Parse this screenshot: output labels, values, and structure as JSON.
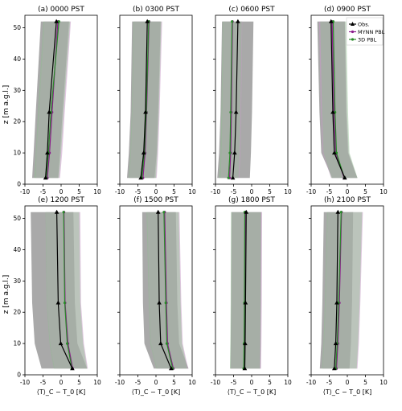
{
  "figure": {
    "ylabel": "z [m a.g.l.]",
    "xlabel": "⟨T⟩_C − T_0 [K]"
  },
  "chart_data": {
    "type": "line",
    "x_ticks": [
      -10,
      -5,
      0,
      5,
      10
    ],
    "y_ticks": [
      0,
      10,
      20,
      30,
      40,
      50
    ],
    "xlim": [
      -10,
      10
    ],
    "ylim": [
      0,
      54
    ],
    "heights": [
      2,
      10,
      23,
      52
    ],
    "legend": {
      "placement": "top-right of panel (d)",
      "entries": [
        {
          "label": "Obs.",
          "color": "#000000",
          "marker": "triangle"
        },
        {
          "label": "MYNN PBL",
          "color": "#8b1a8b",
          "marker": "circle"
        },
        {
          "label": "3D PBL",
          "color": "#2a8a2a",
          "marker": "circle"
        }
      ]
    },
    "colors": {
      "obs": "#000000",
      "mynn": "#8b1a8b",
      "pbl3d": "#2a8a2a",
      "obs_band": "#9a9a9a",
      "mynn_band": "#c99bc9",
      "pbl3d_band": "#8fbf8f"
    },
    "panels": [
      {
        "title": "(a) 0000 PST",
        "obs": [
          -4.3,
          -3.8,
          -3.3,
          -1.3
        ],
        "mynn": [
          -3.8,
          -3.2,
          -2.5,
          -0.9
        ],
        "pbl3d": [
          -4.1,
          -3.5,
          -2.8,
          -0.6
        ],
        "obs_band": [
          [
            -8.0,
            -0.8
          ],
          [
            -7.6,
            -0.3
          ],
          [
            -7.0,
            0.4
          ],
          [
            -5.6,
            2.2
          ]
        ],
        "mynn_band": [
          [
            -7.0,
            -0.3
          ],
          [
            -6.8,
            0.3
          ],
          [
            -6.1,
            1.0
          ],
          [
            -4.6,
            2.7
          ]
        ],
        "pbl3d_band": [
          [
            -7.4,
            -0.6
          ],
          [
            -7.0,
            0.0
          ],
          [
            -6.4,
            0.7
          ],
          [
            -4.9,
            2.5
          ]
        ]
      },
      {
        "title": "(b) 0300 PST",
        "obs": [
          -4.2,
          -3.4,
          -2.9,
          -2.4
        ],
        "mynn": [
          -3.6,
          -3.0,
          -2.6,
          -1.9
        ],
        "pbl3d": [
          -3.9,
          -3.2,
          -2.7,
          -2.0
        ],
        "obs_band": [
          [
            -8.0,
            -0.4
          ],
          [
            -7.5,
            0.2
          ],
          [
            -7.0,
            0.6
          ],
          [
            -6.6,
            1.3
          ]
        ],
        "mynn_band": [
          [
            -7.3,
            0.2
          ],
          [
            -6.9,
            0.6
          ],
          [
            -6.5,
            1.0
          ],
          [
            -6.0,
            1.7
          ]
        ],
        "pbl3d_band": [
          [
            -7.5,
            0.0
          ],
          [
            -7.1,
            0.4
          ],
          [
            -6.7,
            0.8
          ],
          [
            -6.2,
            1.5
          ]
        ]
      },
      {
        "title": "(c) 0600 PST",
        "obs": [
          -5.2,
          -4.7,
          -4.3,
          -3.8
        ],
        "mynn": [
          -6.1,
          -5.8,
          -5.6,
          -5.3
        ],
        "pbl3d": [
          -6.4,
          -6.0,
          -5.8,
          -5.4
        ],
        "obs_band": [
          [
            -9.5,
            -0.5
          ],
          [
            -9.0,
            -0.2
          ],
          [
            -8.6,
            0.1
          ],
          [
            -8.2,
            0.5
          ]
        ],
        "mynn_band": [
          [
            -8.6,
            -3.4
          ],
          [
            -8.3,
            -3.1
          ],
          [
            -8.1,
            -2.9
          ],
          [
            -7.8,
            -2.6
          ]
        ],
        "pbl3d_band": [
          [
            -9.0,
            -3.6
          ],
          [
            -8.6,
            -3.3
          ],
          [
            -8.4,
            -3.1
          ],
          [
            -8.0,
            -2.7
          ]
        ]
      },
      {
        "title": "(d) 0900 PST",
        "obs": [
          -0.7,
          -3.6,
          -4.0,
          -4.5
        ],
        "mynn": [
          -0.9,
          -3.2,
          -3.7,
          -4.2
        ],
        "pbl3d": [
          -0.8,
          -3.0,
          -3.4,
          -3.9
        ],
        "obs_band": [
          [
            -4.2,
            2.8
          ],
          [
            -7.2,
            0.2
          ],
          [
            -7.7,
            -0.3
          ],
          [
            -8.3,
            -0.7
          ]
        ],
        "mynn_band": [
          [
            -4.5,
            2.7
          ],
          [
            -6.8,
            0.4
          ],
          [
            -7.3,
            -0.1
          ],
          [
            -7.8,
            -0.6
          ]
        ],
        "pbl3d_band": [
          [
            -4.4,
            2.8
          ],
          [
            -6.6,
            0.6
          ],
          [
            -7.0,
            0.2
          ],
          [
            -7.5,
            -0.3
          ]
        ]
      },
      {
        "title": "(e) 1200 PST",
        "obs": [
          3.1,
          -0.1,
          -0.8,
          -1.2
        ],
        "mynn": [
          3.2,
          1.9,
          1.1,
          0.8
        ],
        "pbl3d": [
          3.0,
          1.7,
          1.0,
          0.7
        ],
        "obs_band": [
          [
            -5.4,
            7.2
          ],
          [
            -7.3,
            4.5
          ],
          [
            -8.0,
            3.8
          ],
          [
            -8.4,
            3.4
          ]
        ],
        "mynn_band": [
          [
            -1.8,
            7.4
          ],
          [
            -3.0,
            6.3
          ],
          [
            -3.9,
            5.5
          ],
          [
            -4.2,
            5.3
          ]
        ],
        "pbl3d_band": [
          [
            -2.0,
            7.2
          ],
          [
            -3.2,
            6.1
          ],
          [
            -4.0,
            5.3
          ],
          [
            -4.3,
            5.0
          ]
        ]
      },
      {
        "title": "(f) 1500 PST",
        "obs": [
          4.2,
          1.3,
          0.9,
          0.6
        ],
        "mynn": [
          4.8,
          3.2,
          2.9,
          2.4
        ],
        "pbl3d": [
          4.6,
          3.0,
          2.7,
          2.2
        ],
        "obs_band": [
          [
            -0.6,
            9.0
          ],
          [
            -3.2,
            6.4
          ],
          [
            -3.6,
            5.9
          ],
          [
            -3.8,
            5.5
          ]
        ],
        "mynn_band": [
          [
            0.3,
            8.9
          ],
          [
            -1.4,
            7.4
          ],
          [
            -1.8,
            7.0
          ],
          [
            -2.4,
            6.5
          ]
        ],
        "pbl3d_band": [
          [
            0.1,
            8.7
          ],
          [
            -1.6,
            7.2
          ],
          [
            -2.0,
            6.8
          ],
          [
            -2.6,
            6.3
          ]
        ]
      },
      {
        "title": "(g) 1800 PST",
        "obs": [
          -1.9,
          -1.8,
          -1.7,
          -1.5
        ],
        "mynn": [
          -2.1,
          -2.0,
          -1.9,
          -1.8
        ],
        "pbl3d": [
          -2.2,
          -2.1,
          -2.0,
          -1.9
        ],
        "obs_band": [
          [
            -5.9,
            2.4
          ],
          [
            -5.8,
            2.5
          ],
          [
            -5.7,
            2.6
          ],
          [
            -5.6,
            2.7
          ]
        ],
        "mynn_band": [
          [
            -5.8,
            2.6
          ],
          [
            -5.7,
            2.7
          ],
          [
            -5.6,
            2.8
          ],
          [
            -5.5,
            2.9
          ]
        ],
        "pbl3d_band": [
          [
            -6.0,
            2.3
          ],
          [
            -5.9,
            2.4
          ],
          [
            -5.8,
            2.5
          ],
          [
            -5.7,
            2.6
          ]
        ]
      },
      {
        "title": "(h) 2100 PST",
        "obs": [
          -3.6,
          -3.2,
          -2.9,
          -2.6
        ],
        "mynn": [
          -3.0,
          -2.6,
          -2.2,
          -1.6
        ],
        "pbl3d": [
          -3.2,
          -2.8,
          -2.4,
          -1.7
        ],
        "obs_band": [
          [
            -7.6,
            0.6
          ],
          [
            -7.2,
            1.0
          ],
          [
            -6.9,
            1.3
          ],
          [
            -6.5,
            1.6
          ]
        ],
        "mynn_band": [
          [
            -6.8,
            2.8
          ],
          [
            -6.4,
            3.2
          ],
          [
            -6.0,
            3.6
          ],
          [
            -5.4,
            4.3
          ]
        ],
        "pbl3d_band": [
          [
            -7.0,
            2.6
          ],
          [
            -6.6,
            3.0
          ],
          [
            -6.2,
            3.4
          ],
          [
            -5.6,
            4.1
          ]
        ]
      }
    ]
  }
}
